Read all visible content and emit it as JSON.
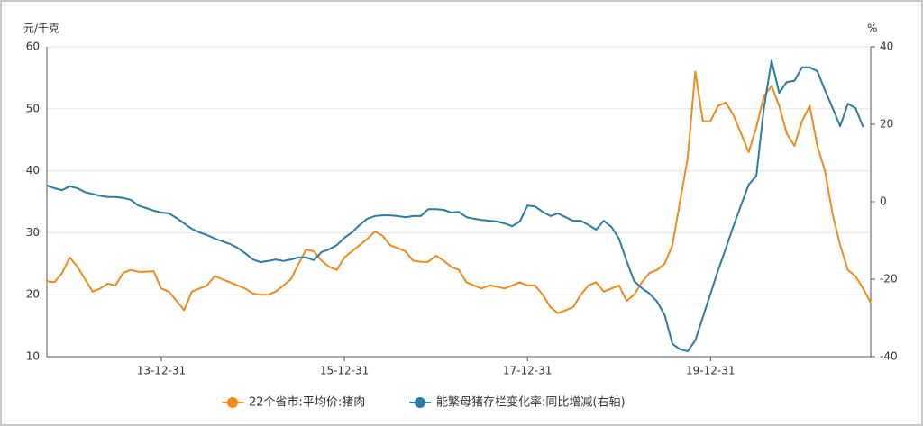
{
  "chart_data": {
    "type": "line",
    "y_label": "元/千克",
    "y2_label": "%",
    "categories": [
      null,
      null,
      null,
      null,
      null,
      null,
      null,
      null,
      null,
      null,
      null,
      null,
      null,
      null,
      null,
      "13-12-31",
      null,
      null,
      null,
      null,
      null,
      null,
      null,
      null,
      null,
      null,
      null,
      null,
      null,
      null,
      null,
      null,
      null,
      null,
      null,
      null,
      null,
      null,
      null,
      "15-12-31",
      null,
      null,
      null,
      null,
      null,
      null,
      null,
      null,
      null,
      null,
      null,
      null,
      null,
      null,
      null,
      null,
      null,
      null,
      null,
      null,
      null,
      null,
      null,
      "17-12-31",
      null,
      null,
      null,
      null,
      null,
      null,
      null,
      null,
      null,
      null,
      null,
      null,
      null,
      null,
      null,
      null,
      null,
      null,
      null,
      null,
      null,
      null,
      null,
      "19-12-31",
      null,
      null,
      null,
      null,
      null,
      null,
      null,
      null,
      null,
      null,
      null,
      null,
      null,
      null,
      null,
      null,
      null,
      null,
      null,
      null,
      null
    ],
    "series": [
      {
        "name": "22个省市:平均价:猪肉",
        "color": "#ee8a1e",
        "values": [
          22.2,
          22,
          23.5,
          26,
          24.5,
          22.5,
          20.5,
          21,
          21.8,
          21.5,
          23.5,
          24,
          23.7,
          23.7,
          23.8,
          21,
          20.5,
          19,
          17.5,
          20.5,
          21,
          21.5,
          23,
          22.5,
          22,
          21.5,
          21,
          20.2,
          20,
          20,
          20.5,
          21.5,
          22.5,
          25,
          27.3,
          27,
          25.5,
          24.5,
          24,
          26,
          27,
          28,
          29,
          30.2,
          29.5,
          28,
          27.5,
          27,
          25.5,
          25.3,
          25.3,
          26.3,
          25.5,
          24.5,
          24,
          22,
          21.5,
          21,
          21.5,
          21.3,
          21,
          21.5,
          22,
          21.5,
          21.5,
          20,
          18,
          17,
          17.5,
          18,
          20,
          21.5,
          22,
          20.5,
          21,
          21.5,
          19,
          20,
          22,
          23.5,
          24,
          25,
          28,
          35,
          42,
          56,
          48,
          48,
          50.5,
          51,
          49,
          46,
          43,
          47,
          52,
          53.7,
          50.5,
          46,
          44,
          48,
          50.5,
          44,
          40,
          33,
          28,
          24,
          23,
          21,
          18.7
        ]
      },
      {
        "name": "能繁母猪存栏变化率:同比增减(右轴)",
        "color": "#2b7ca3",
        "axis": "y2",
        "values": [
          4.2,
          3.5,
          3,
          4,
          3.5,
          2.5,
          2,
          1.5,
          1.2,
          1.2,
          1,
          0.5,
          -1,
          -1.6,
          -2.3,
          -2.8,
          -3,
          -4.2,
          -5.6,
          -7,
          -7.9,
          -8.6,
          -9.5,
          -10.2,
          -10.9,
          -11.9,
          -13.3,
          -14.9,
          -15.6,
          -15.3,
          -14.9,
          -15.3,
          -14.9,
          -14.4,
          -14.4,
          -15.1,
          -13,
          -12.3,
          -11.2,
          -9.3,
          -7.9,
          -6,
          -4.4,
          -3.7,
          -3.5,
          -3.5,
          -3.7,
          -4,
          -3.7,
          -3.7,
          -1.9,
          -1.9,
          -2.1,
          -2.8,
          -2.6,
          -4,
          -4.4,
          -4.7,
          -4.9,
          -5.1,
          -5.6,
          -6.3,
          -5.1,
          -1,
          -1.2,
          -2.6,
          -3.7,
          -3,
          -4,
          -4.9,
          -4.9,
          -6,
          -7.2,
          -4.9,
          -6.5,
          -9.5,
          -15.3,
          -20.5,
          -22.3,
          -23.7,
          -25.8,
          -29.3,
          -36.7,
          -38.1,
          -38.6,
          -35.8,
          -29.8,
          -23.7,
          -17.7,
          -12.1,
          -6.3,
          -0.9,
          4.4,
          6.7,
          24.2,
          36.5,
          28.1,
          30.9,
          31.2,
          34.7,
          34.7,
          33.7,
          28.8,
          24.2,
          19.5,
          25.3,
          24.2,
          19.3,
          null
        ]
      }
    ],
    "ylim": [
      10,
      60
    ],
    "yticks": [
      10,
      20,
      30,
      40,
      50,
      60
    ],
    "y2lim": [
      -40,
      40
    ],
    "y2ticks": [
      -40,
      -20,
      0,
      20,
      40
    ],
    "grid": true,
    "legend": "bottom"
  }
}
